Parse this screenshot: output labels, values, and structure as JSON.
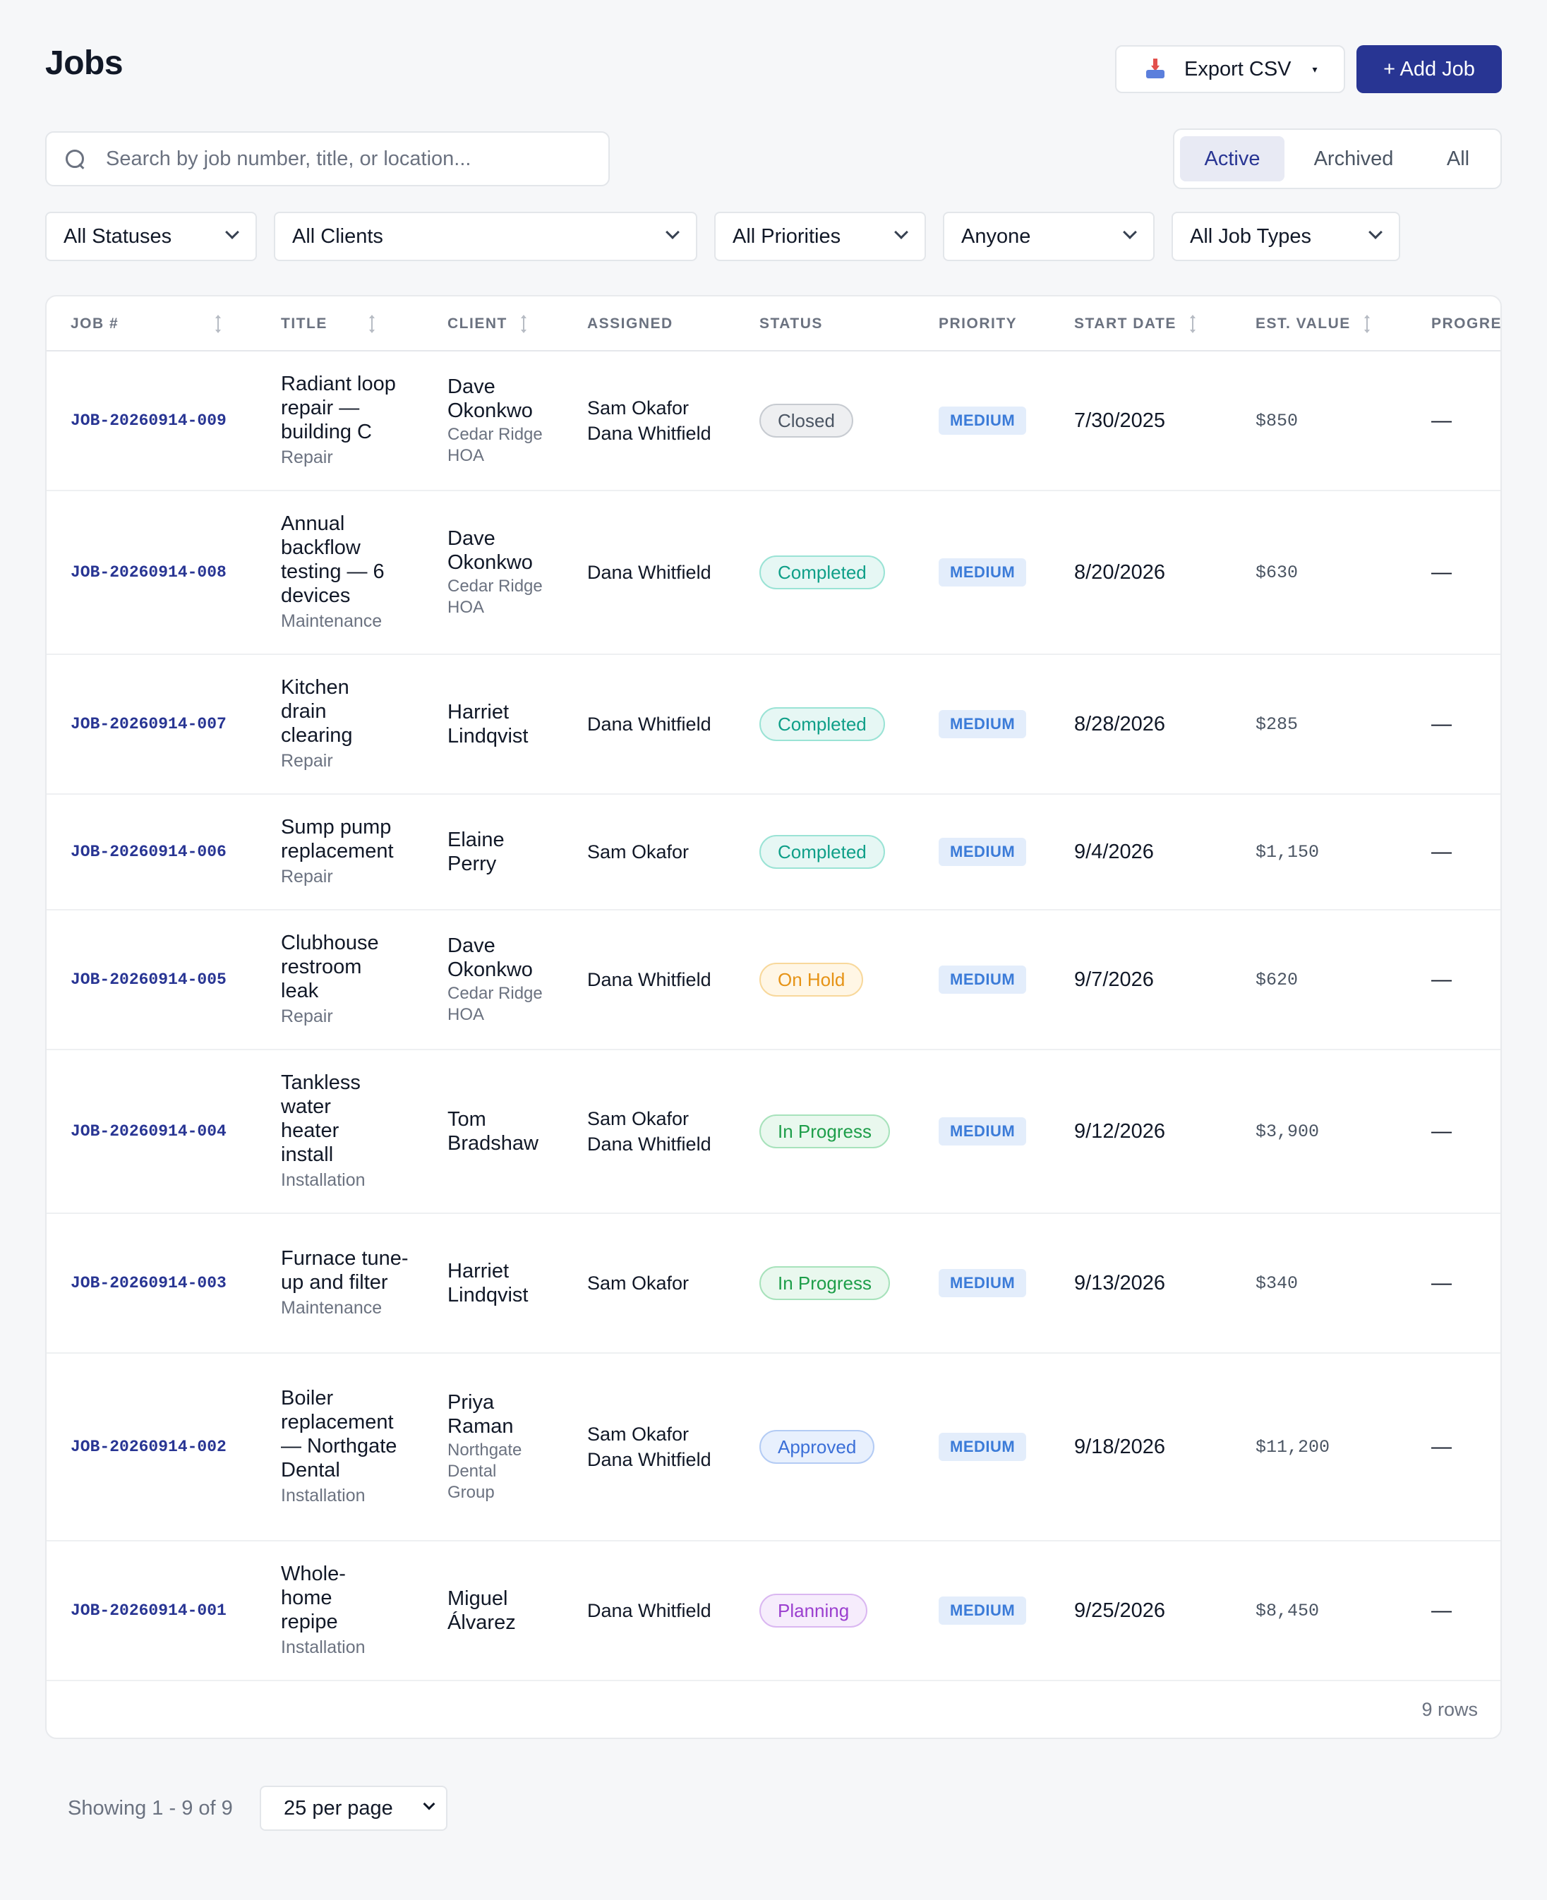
{
  "header": {
    "title": "Jobs",
    "export_label": "Export CSV",
    "export_caret": "▾",
    "add_label": "+ Add Job"
  },
  "search": {
    "placeholder": "Search by job number, title, or location..."
  },
  "view_tabs": [
    {
      "label": "Active",
      "active": true
    },
    {
      "label": "Archived",
      "active": false
    },
    {
      "label": "All",
      "active": false
    }
  ],
  "filters": {
    "status": "All Statuses",
    "client": "All Clients",
    "priority": "All Priorities",
    "assignee": "Anyone",
    "job_type": "All Job Types"
  },
  "table": {
    "columns": {
      "job": "JOB #",
      "title": "TITLE",
      "client": "CLIENT",
      "assigned": "ASSIGNED",
      "status": "STATUS",
      "priority": "PRIORITY",
      "start_date": "START DATE",
      "value": "EST. VALUE",
      "progress": "PROGRE"
    },
    "rows": [
      {
        "job": "JOB-20260914-009",
        "title": "Radiant loop repair — building C",
        "type": "Repair",
        "client": "Dave Okonkwo",
        "client_org": "Cedar Ridge HOA",
        "assigned1": "Sam Okafor",
        "assigned2": "Dana Whitfield",
        "status": "Closed",
        "priority": "MEDIUM",
        "start": "7/30/2025",
        "value": "$850",
        "progress": "—"
      },
      {
        "job": "JOB-20260914-008",
        "title": "Annual backflow testing — 6 devices",
        "type": "Maintenance",
        "client": "Dave Okonkwo",
        "client_org": "Cedar Ridge HOA",
        "assigned1": "Dana Whitfield",
        "assigned2": "",
        "status": "Completed",
        "priority": "MEDIUM",
        "start": "8/20/2026",
        "value": "$630",
        "progress": "—"
      },
      {
        "job": "JOB-20260914-007",
        "title": "Kitchen drain clearing",
        "type": "Repair",
        "client": "Harriet Lindqvist",
        "client_org": "",
        "assigned1": "Dana Whitfield",
        "assigned2": "",
        "status": "Completed",
        "priority": "MEDIUM",
        "start": "8/28/2026",
        "value": "$285",
        "progress": "—"
      },
      {
        "job": "JOB-20260914-006",
        "title": "Sump pump replacement",
        "type": "Repair",
        "client": "Elaine Perry",
        "client_org": "",
        "assigned1": "Sam Okafor",
        "assigned2": "",
        "status": "Completed",
        "priority": "MEDIUM",
        "start": "9/4/2026",
        "value": "$1,150",
        "progress": "—"
      },
      {
        "job": "JOB-20260914-005",
        "title": "Clubhouse restroom leak",
        "type": "Repair",
        "client": "Dave Okonkwo",
        "client_org": "Cedar Ridge HOA",
        "assigned1": "Dana Whitfield",
        "assigned2": "",
        "status": "On Hold",
        "priority": "MEDIUM",
        "start": "9/7/2026",
        "value": "$620",
        "progress": "—"
      },
      {
        "job": "JOB-20260914-004",
        "title": "Tankless water heater install",
        "type": "Installation",
        "client": "Tom Bradshaw",
        "client_org": "",
        "assigned1": "Sam Okafor",
        "assigned2": "Dana Whitfield",
        "status": "In Progress",
        "priority": "MEDIUM",
        "start": "9/12/2026",
        "value": "$3,900",
        "progress": "—"
      },
      {
        "job": "JOB-20260914-003",
        "title": "Furnace tune-up and filter",
        "type": "Maintenance",
        "client": "Harriet Lindqvist",
        "client_org": "",
        "assigned1": "Sam Okafor",
        "assigned2": "",
        "status": "In Progress",
        "priority": "MEDIUM",
        "start": "9/13/2026",
        "value": "$340",
        "progress": "—"
      },
      {
        "job": "JOB-20260914-002",
        "title": "Boiler replacement — Northgate Dental",
        "type": "Installation",
        "client": "Priya Raman",
        "client_org": "Northgate Dental Group",
        "assigned1": "Sam Okafor",
        "assigned2": "Dana Whitfield",
        "status": "Approved",
        "priority": "MEDIUM",
        "start": "9/18/2026",
        "value": "$11,200",
        "progress": "—"
      },
      {
        "job": "JOB-20260914-001",
        "title": "Whole-home repipe",
        "type": "Installation",
        "client": "Miguel Álvarez",
        "client_org": "",
        "assigned1": "Dana Whitfield",
        "assigned2": "",
        "status": "Planning",
        "priority": "MEDIUM",
        "start": "9/25/2026",
        "value": "$8,450",
        "progress": "—"
      }
    ],
    "row_count_label": "9 rows"
  },
  "footer": {
    "showing": "Showing 1 - 9 of 9",
    "per_page": "25 per page"
  },
  "colors": {
    "primary": "#283593",
    "background": "#f6f7f9"
  }
}
